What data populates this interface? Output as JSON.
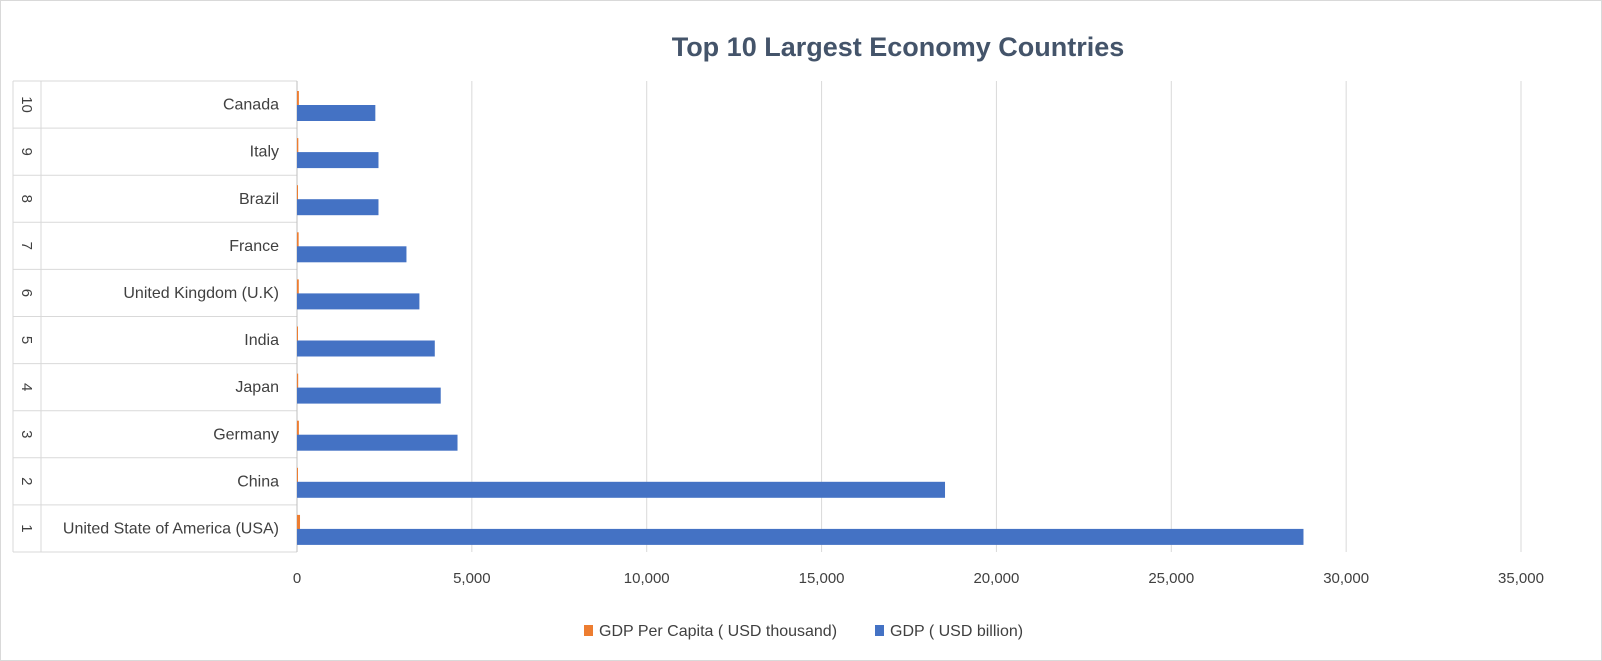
{
  "chart_data": {
    "type": "bar",
    "orientation": "horizontal",
    "title": "Top 10 Largest Economy Countries",
    "categories": [
      {
        "rank": "1",
        "name": "United State of America (USA)"
      },
      {
        "rank": "2",
        "name": "China"
      },
      {
        "rank": "3",
        "name": "Germany"
      },
      {
        "rank": "4",
        "name": "Japan"
      },
      {
        "rank": "5",
        "name": "India"
      },
      {
        "rank": "6",
        "name": "United Kingdom (U.K)"
      },
      {
        "rank": "7",
        "name": "France"
      },
      {
        "rank": "8",
        "name": "Brazil"
      },
      {
        "rank": "9",
        "name": "Italy"
      },
      {
        "rank": "10",
        "name": "Canada"
      }
    ],
    "series": [
      {
        "name": "GDP Per Capita ( USD thousand)",
        "color": "#ed7d31",
        "values": [
          86,
          13,
          54,
          34,
          3,
          51,
          47,
          11,
          38,
          54
        ]
      },
      {
        "name": "GDP ( USD billion)",
        "color": "#4472c4",
        "values": [
          28780,
          18530,
          4590,
          4110,
          3940,
          3500,
          3130,
          2330,
          2330,
          2240
        ]
      }
    ],
    "xlim": [
      0,
      35000
    ],
    "xticks": [
      "0",
      "5,000",
      "10,000",
      "15,000",
      "20,000",
      "25,000",
      "30,000",
      "35,000"
    ],
    "xtick_values": [
      0,
      5000,
      10000,
      15000,
      20000,
      25000,
      30000,
      35000
    ],
    "grid": true,
    "legend_position": "bottom"
  }
}
